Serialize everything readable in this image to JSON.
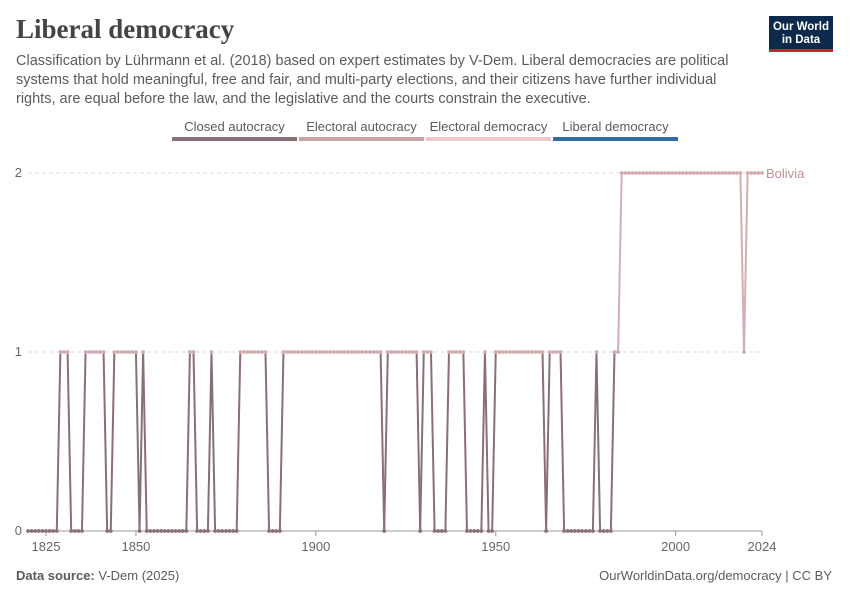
{
  "title": "Liberal democracy",
  "subtitle": "Classification by Lührmann et al. (2018) based on expert estimates by V-Dem. Liberal democracies are political systems that hold meaningful, free and fair, and multi-party elections, and their citizens have further individual rights, are equal before the law, and the legislative and the courts constrain the executive.",
  "logo": {
    "line1": "Our World",
    "line2": "in Data"
  },
  "footer": {
    "source_label": "Data source:",
    "source_value": "V-Dem (2025)",
    "license": "OurWorldinData.org/democracy | CC BY"
  },
  "colors": {
    "closed": "#8a6f74",
    "electoral_autocracy": "#c9a2a6",
    "electoral_democracy": "#eec9cc",
    "liberal": "#2f6ca8",
    "line": "#d3aeb1",
    "grid": "#dddddd",
    "axis": "#666666"
  },
  "chart_data": {
    "type": "line",
    "title": "Liberal democracy",
    "xlim": [
      1820,
      2024
    ],
    "ylim": [
      0,
      2
    ],
    "yticks": [
      0,
      1,
      2
    ],
    "xticks": [
      1825,
      1850,
      1900,
      1950,
      2000,
      2024
    ],
    "grid": true,
    "legend_placement": "top-center",
    "legend": [
      {
        "label": "Closed autocracy",
        "color": "#8a6f74"
      },
      {
        "label": "Electoral autocracy",
        "color": "#c9a2a6"
      },
      {
        "label": "Electoral democracy",
        "color": "#eec9cc"
      },
      {
        "label": "Liberal democracy",
        "color": "#2f6ca8"
      }
    ],
    "series": [
      {
        "name": "Bolivia",
        "segments": [
          [
            1820,
            0
          ],
          [
            1829,
            1
          ],
          [
            1832,
            0
          ],
          [
            1836,
            1
          ],
          [
            1842,
            0
          ],
          [
            1844,
            1
          ],
          [
            1851,
            0
          ],
          [
            1852,
            1
          ],
          [
            1853,
            0
          ],
          [
            1865,
            1
          ],
          [
            1867,
            0
          ],
          [
            1871,
            1
          ],
          [
            1872,
            0
          ],
          [
            1879,
            1
          ],
          [
            1887,
            0
          ],
          [
            1891,
            1
          ],
          [
            1919,
            0
          ],
          [
            1920,
            1
          ],
          [
            1929,
            0
          ],
          [
            1930,
            1
          ],
          [
            1933,
            0
          ],
          [
            1937,
            1
          ],
          [
            1942,
            0
          ],
          [
            1947,
            1
          ],
          [
            1948,
            0
          ],
          [
            1950,
            1
          ],
          [
            1964,
            0
          ],
          [
            1965,
            1
          ],
          [
            1969,
            0
          ],
          [
            1978,
            1
          ],
          [
            1979,
            0
          ],
          [
            1983,
            1
          ],
          [
            1985,
            2
          ],
          [
            2019,
            1
          ],
          [
            2020,
            2
          ]
        ]
      }
    ]
  }
}
